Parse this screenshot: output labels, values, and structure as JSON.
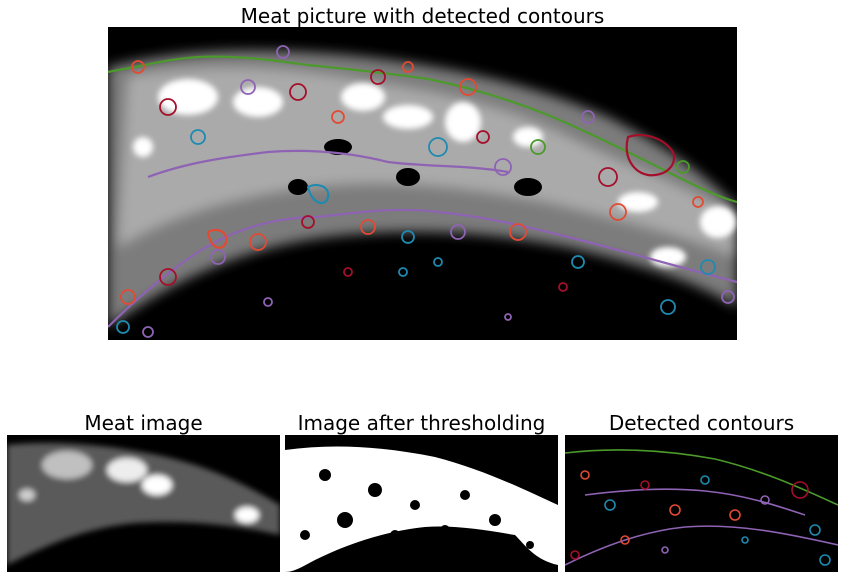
{
  "main": {
    "title": "Meat picture with detected contours"
  },
  "panels": [
    {
      "title": "Meat image"
    },
    {
      "title": "Image after thresholding"
    },
    {
      "title": "Detected contours"
    }
  ],
  "colors": {
    "background": "#000000",
    "meat": "#d9d9d9",
    "threshold": "#ffffff",
    "contours": [
      "#4b9a2b",
      "#8e63b4",
      "#e24a33",
      "#a50f2a",
      "#1f8ab0"
    ]
  }
}
